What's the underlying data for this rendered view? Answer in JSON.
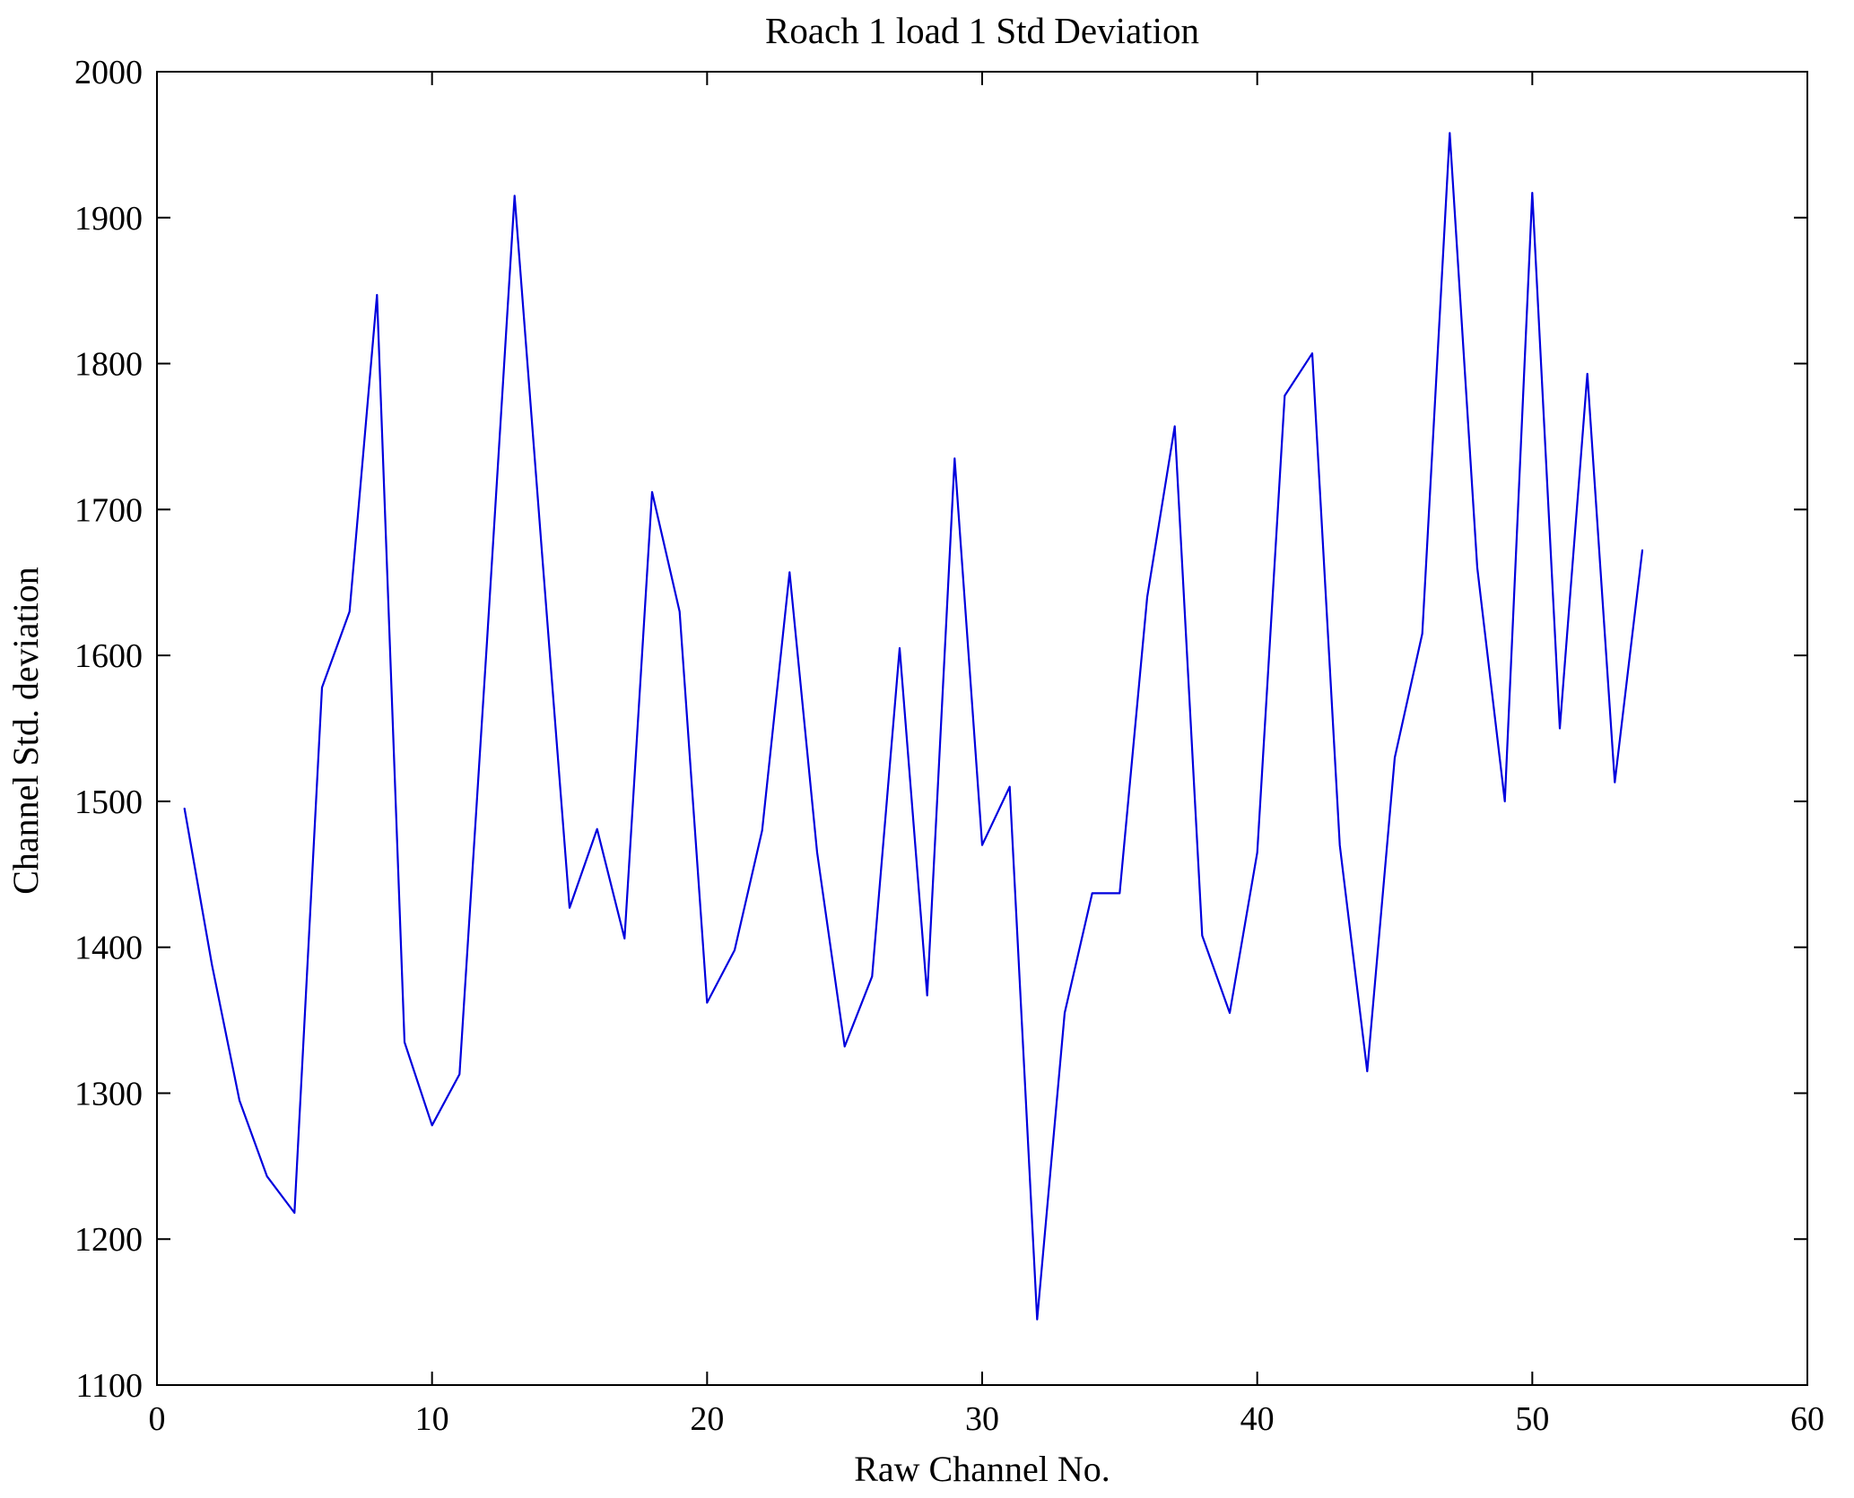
{
  "chart_data": {
    "type": "line",
    "title": "Roach 1 load 1 Std Deviation",
    "xlabel": "Raw Channel No.",
    "ylabel": "Channel Std. deviation",
    "xlim": [
      0,
      60
    ],
    "ylim": [
      1100,
      2000
    ],
    "xticks": [
      0,
      10,
      20,
      30,
      40,
      50,
      60
    ],
    "yticks": [
      1100,
      1200,
      1300,
      1400,
      1500,
      1600,
      1700,
      1800,
      1900,
      2000
    ],
    "grid": false,
    "legend": null,
    "line_color": "#0000dd",
    "x": [
      1,
      2,
      3,
      4,
      5,
      6,
      7,
      8,
      9,
      10,
      11,
      12,
      13,
      14,
      15,
      16,
      17,
      18,
      19,
      20,
      21,
      22,
      23,
      24,
      25,
      26,
      27,
      28,
      29,
      30,
      31,
      32,
      33,
      34,
      35,
      36,
      37,
      38,
      39,
      40,
      41,
      42,
      43,
      44,
      45,
      46,
      47,
      48,
      49,
      50,
      51,
      52,
      53,
      54
    ],
    "y": [
      1495,
      1388,
      1295,
      1243,
      1218,
      1578,
      1630,
      1847,
      1335,
      1278,
      1313,
      1610,
      1915,
      1670,
      1427,
      1481,
      1406,
      1712,
      1630,
      1362,
      1398,
      1480,
      1657,
      1465,
      1332,
      1380,
      1605,
      1367,
      1735,
      1470,
      1510,
      1145,
      1355,
      1437,
      1437,
      1640,
      1757,
      1408,
      1355,
      1465,
      1778,
      1807,
      1470,
      1315,
      1530,
      1615,
      1958,
      1660,
      1500,
      1917,
      1550,
      1793,
      1513,
      1672
    ]
  }
}
